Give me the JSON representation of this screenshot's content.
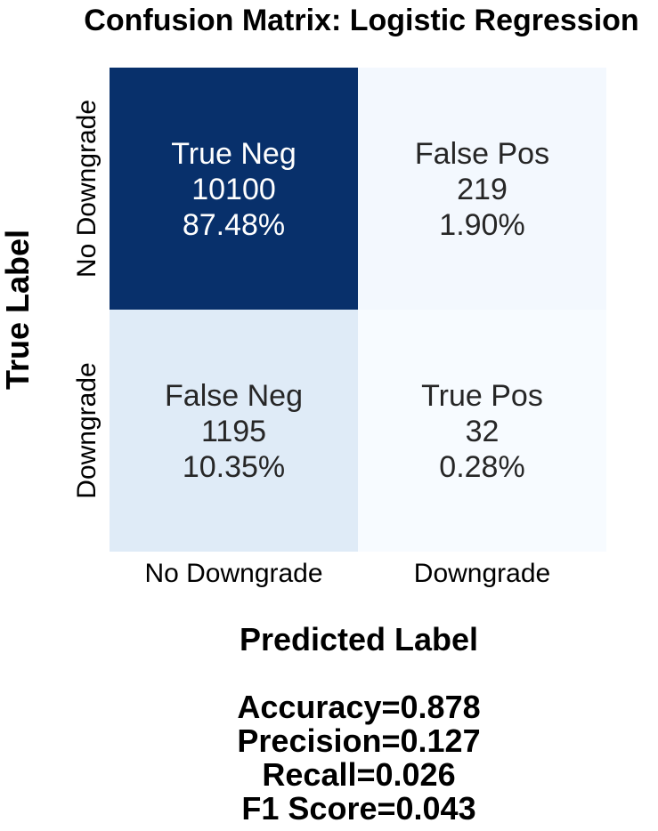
{
  "chart_data": {
    "type": "heatmap",
    "title": "Confusion Matrix: Logistic Regression",
    "xlabel": "Predicted Label",
    "ylabel": "True Label",
    "x_categories": [
      "No Downgrade",
      "Downgrade"
    ],
    "y_categories": [
      "No Downgrade",
      "Downgrade"
    ],
    "cells": [
      [
        {
          "name": "True Neg",
          "count": "10100",
          "percent": "87.48%",
          "value": 10100,
          "color": "#08306b",
          "text_color": "#ffffff"
        },
        {
          "name": "False Pos",
          "count": "219",
          "percent": "1.90%",
          "value": 219,
          "color": "#f3f8fe",
          "text_color": "#262626"
        }
      ],
      [
        {
          "name": "False Neg",
          "count": "1195",
          "percent": "10.35%",
          "value": 1195,
          "color": "#dfebf7",
          "text_color": "#262626"
        },
        {
          "name": "True Pos",
          "count": "32",
          "percent": "0.28%",
          "value": 32,
          "color": "#f7fbff",
          "text_color": "#262626"
        }
      ]
    ],
    "colormap": "Blues",
    "colorbar": false,
    "metrics": [
      "Accuracy=0.878",
      "Precision=0.127",
      "Recall=0.026",
      "F1 Score=0.043"
    ]
  }
}
